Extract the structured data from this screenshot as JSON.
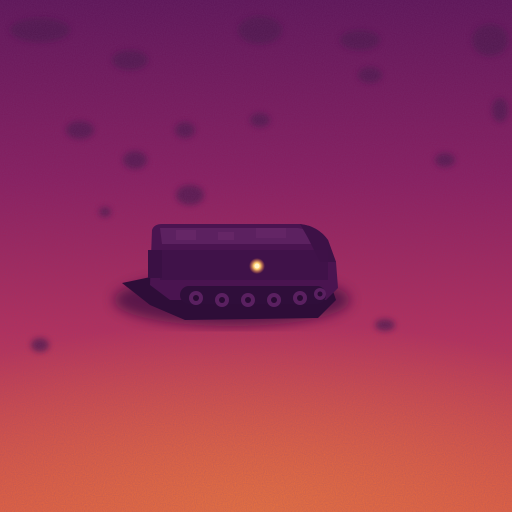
{
  "image": {
    "palette": {
      "sky_top": "#5c1356",
      "mid": "#a8255c",
      "bottom": "#e3593f",
      "hot_ground": "#f07a3a",
      "vehicle_body": "#4a1450",
      "vehicle_shadow": "#34103e",
      "vehicle_highlight": "#6a2a6a",
      "hotspot": "#ffd070"
    },
    "subject_icon": "armored-vehicle-icon"
  }
}
